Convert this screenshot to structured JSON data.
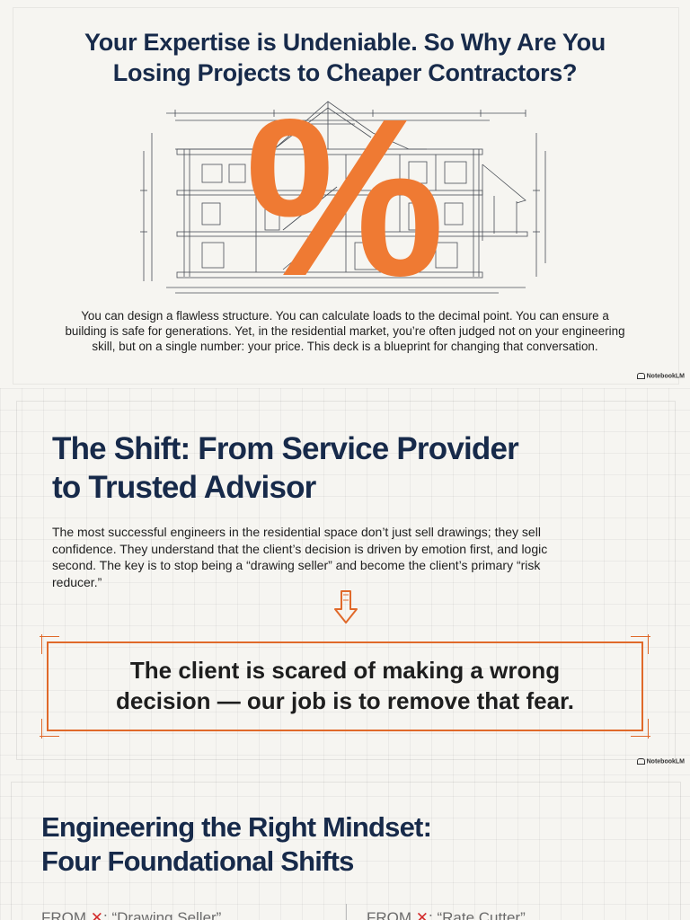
{
  "slide1": {
    "title_line1": "Your Expertise is Undeniable. So Why Are You",
    "title_line2": "Losing Projects to Cheaper Contractors?",
    "percent_symbol": "%",
    "body_line1": "You can design a flawless structure. You can calculate loads to the decimal point. You can ensure a",
    "body_line2": "building is safe for generations. Yet, in the residential market, you’re often judged not on your engineering",
    "body_line3": "skill, but on a single number: your price. This deck is a blueprint for changing that conversation.",
    "brand": "NotebookLM"
  },
  "slide2": {
    "title_line1": "The Shift: From Service Provider",
    "title_line2": "to Trusted Advisor",
    "body_line1": "The most successful engineers in the residential space don’t just sell drawings; they sell",
    "body_line2": "confidence. They understand that the client’s decision is driven by emotion first, and logic",
    "body_line3": "second. The key is to stop being a “drawing seller” and become the client’s primary “risk",
    "body_line4": "reducer.”",
    "quote_line1": "The client is scared of making a wrong",
    "quote_line2": "decision — our job is to remove that fear.",
    "brand": "NotebookLM"
  },
  "slide3": {
    "title_line1": "Engineering the Right Mindset:",
    "title_line2": "Four Foundational Shifts",
    "col1_from": "FROM",
    "col1_value": "“Drawing Seller”",
    "col2_from": "FROM",
    "col2_value": "“Rate Cutter”"
  },
  "colors": {
    "navy": "#172a4a",
    "accent_orange": "#e0692a",
    "x_red": "#d32b2b"
  }
}
